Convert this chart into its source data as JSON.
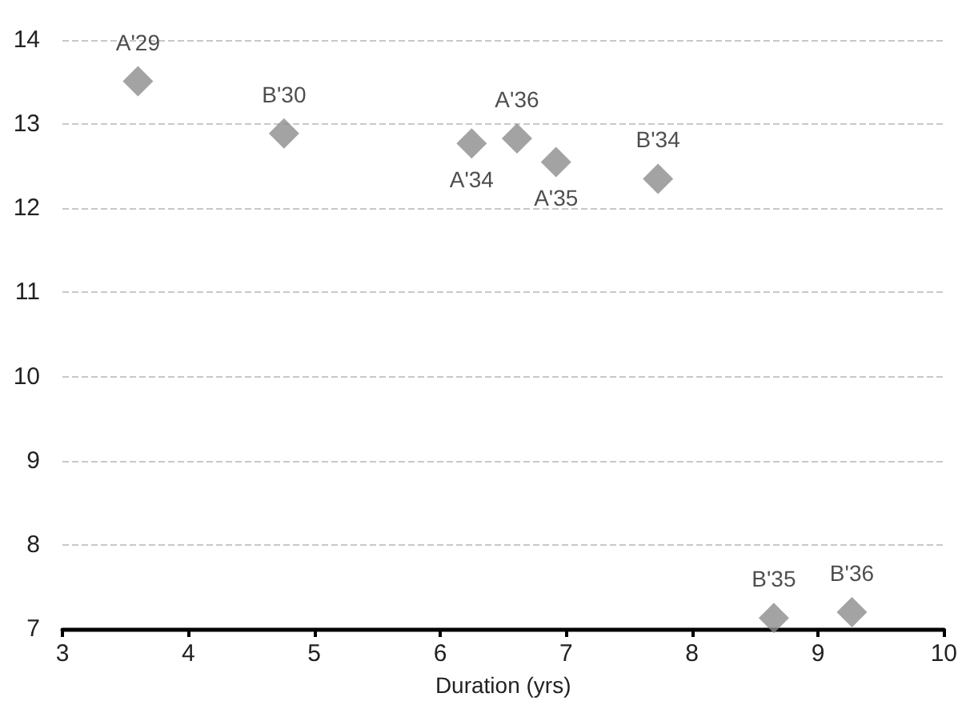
{
  "chart_data": {
    "type": "scatter",
    "xlabel": "Duration (yrs)",
    "xlim": [
      3,
      10
    ],
    "xticks": [
      3,
      4,
      5,
      6,
      7,
      8,
      9,
      10
    ],
    "ylim": [
      7,
      14
    ],
    "yticks": [
      7,
      8,
      9,
      10,
      11,
      12,
      13,
      14
    ],
    "grid": "y",
    "legend": false,
    "marker": "diamond",
    "series": [
      {
        "name": "A'29",
        "color": "#8c8c8c",
        "x": [
          3.6
        ],
        "values": [
          13.51
        ]
      },
      {
        "name": "B'30",
        "color": "#8c8c8c",
        "x": [
          4.76
        ],
        "values": [
          12.89
        ]
      },
      {
        "name": "A'34",
        "color": "#8c8c8c",
        "x": [
          6.25
        ],
        "values": [
          12.77
        ]
      },
      {
        "name": "A'36",
        "color": "#8c8c8c",
        "x": [
          6.61
        ],
        "values": [
          12.83
        ]
      },
      {
        "name": "A'35",
        "color": "#8c8c8c",
        "x": [
          6.92
        ],
        "values": [
          12.55
        ]
      },
      {
        "name": "B'34",
        "color": "#8c8c8c",
        "x": [
          7.73
        ],
        "values": [
          12.35
        ]
      },
      {
        "name": "B'35",
        "color": "#8c8c8c",
        "x": [
          8.65
        ],
        "values": [
          7.13
        ]
      },
      {
        "name": "B'36",
        "color": "#8c8c8c",
        "x": [
          9.27
        ],
        "values": [
          7.2
        ]
      }
    ]
  }
}
